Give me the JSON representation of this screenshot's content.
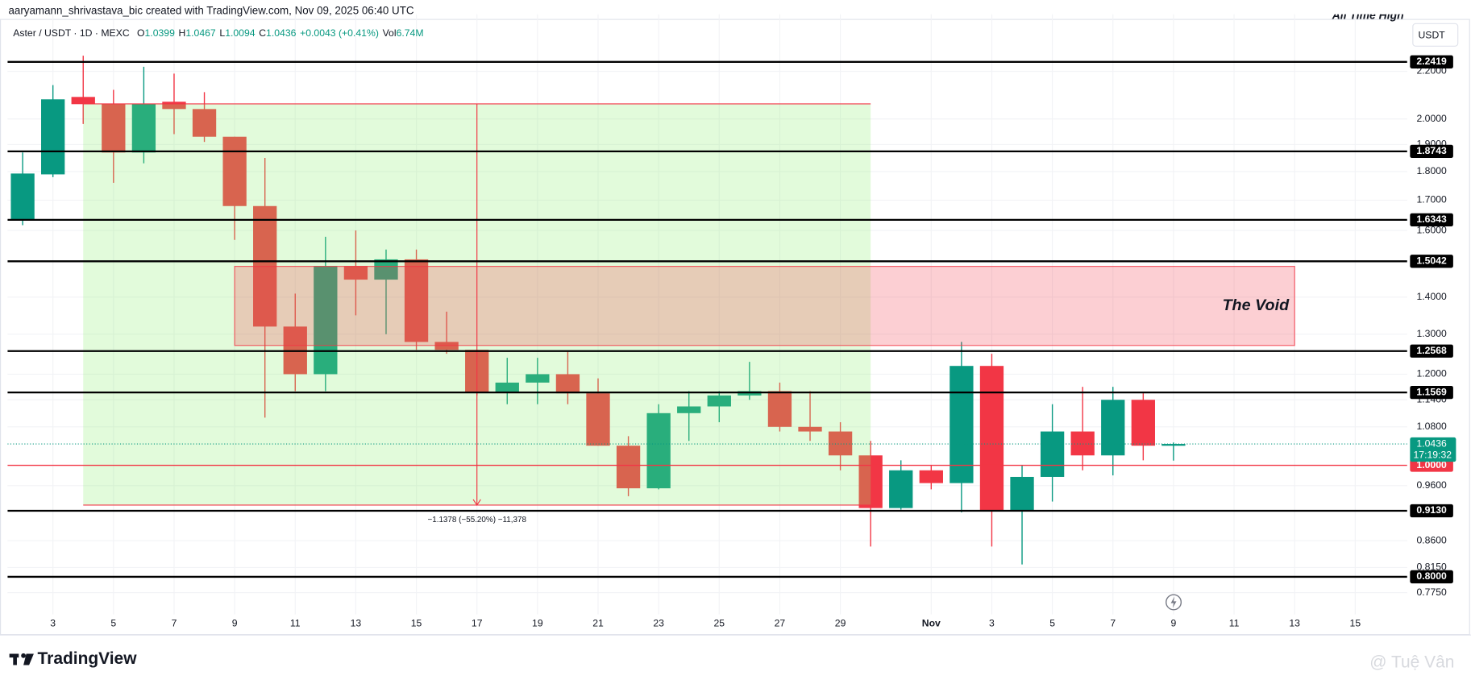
{
  "chart_data": {
    "type": "candlestick",
    "credit": "aaryamann_shrivastava_bic created with TradingView.com, Nov 09, 2025 06:40 UTC",
    "symbol": "Aster / USDT · 1D · MEXC",
    "ohlc_labels": [
      "O",
      "H",
      "L",
      "C"
    ],
    "change": "+0.0043 (+0.41%)",
    "volume_label": "Vol",
    "volume": "6.74M",
    "currency": "USDT",
    "ath_label": "All Time High",
    "logo": "TradingView",
    "watermark": "@ Tuệ Vân",
    "categories": [
      null,
      "3",
      null,
      "5",
      null,
      "7",
      null,
      "9",
      null,
      "11",
      null,
      "13",
      null,
      "15",
      null,
      "17",
      null,
      "19",
      null,
      "21",
      null,
      "23",
      null,
      "25",
      null,
      "27",
      null,
      "29",
      null,
      null,
      "Nov",
      null,
      "3",
      null,
      "5",
      null,
      "7",
      null,
      "9",
      null,
      "11",
      null,
      "13",
      null,
      "15",
      null
    ],
    "open": [
      1.636,
      1.79,
      2.09,
      2.06,
      1.87,
      2.07,
      2.04,
      1.93,
      1.68,
      1.32,
      1.2,
      1.49,
      1.45,
      1.51,
      1.28,
      1.26,
      1.157,
      1.18,
      1.2,
      1.155,
      1.04,
      0.955,
      1.11,
      1.125,
      1.15,
      1.16,
      1.08,
      1.07,
      1.02,
      0.918,
      0.99,
      0.965,
      1.22,
      0.913,
      0.977,
      1.07,
      1.02,
      1.14,
      1.0399,
      null,
      null,
      null,
      null,
      null,
      null,
      null
    ],
    "high": [
      1.87,
      2.14,
      2.27,
      2.12,
      2.22,
      2.19,
      2.11,
      1.93,
      1.85,
      1.41,
      1.58,
      1.6,
      1.54,
      1.54,
      1.36,
      1.26,
      1.24,
      1.24,
      1.255,
      1.19,
      1.06,
      1.13,
      1.16,
      1.16,
      1.23,
      1.18,
      1.16,
      1.09,
      1.05,
      1.01,
      1.0,
      1.28,
      1.25,
      1.0,
      1.13,
      1.17,
      1.17,
      1.155,
      1.0467,
      null,
      null,
      null,
      null,
      null,
      null,
      null
    ],
    "low": [
      1.617,
      1.78,
      1.98,
      1.76,
      1.83,
      1.94,
      1.91,
      1.57,
      1.1,
      1.16,
      1.16,
      1.35,
      1.3,
      1.26,
      1.25,
      1.15,
      1.13,
      1.13,
      1.13,
      1.04,
      0.94,
      0.953,
      1.05,
      1.09,
      1.14,
      1.07,
      1.05,
      0.99,
      0.85,
      0.915,
      0.953,
      0.91,
      0.85,
      0.82,
      0.93,
      0.99,
      0.98,
      1.01,
      1.0094,
      null,
      null,
      null,
      null,
      null,
      null,
      null
    ],
    "close": [
      1.793,
      2.08,
      2.06,
      1.87,
      2.06,
      2.04,
      1.93,
      1.68,
      1.32,
      1.2,
      1.49,
      1.45,
      1.51,
      1.28,
      1.26,
      1.157,
      1.18,
      1.2,
      1.155,
      1.04,
      0.955,
      1.11,
      1.125,
      1.15,
      1.16,
      1.08,
      1.07,
      1.02,
      0.918,
      0.99,
      0.965,
      1.22,
      0.913,
      0.977,
      1.07,
      1.02,
      1.14,
      1.04,
      1.0436,
      null,
      null,
      null,
      null,
      null,
      null,
      null
    ],
    "up_color": "#089981",
    "down_color": "#f23645",
    "log_scale": true,
    "grid": true,
    "ylim": [
      0.742,
      2.466
    ],
    "yticks": [
      {
        "value": 2.2,
        "label": "2.2000"
      },
      {
        "value": 2.0,
        "label": "2.0000"
      },
      {
        "value": 1.9,
        "label": "1.9000"
      },
      {
        "value": 1.8,
        "label": "1.8000"
      },
      {
        "value": 1.7,
        "label": "1.7000"
      },
      {
        "value": 1.6,
        "label": "1.6000"
      },
      {
        "value": 1.4,
        "label": "1.4000"
      },
      {
        "value": 1.3,
        "label": "1.3000"
      },
      {
        "value": 1.2,
        "label": "1.2000"
      },
      {
        "value": 1.14,
        "label": "1.1400"
      },
      {
        "value": 1.08,
        "label": "1.0800"
      },
      {
        "value": 0.96,
        "label": "0.9600"
      },
      {
        "value": 0.86,
        "label": "0.8600"
      },
      {
        "value": 0.815,
        "label": "0.8150"
      },
      {
        "value": 0.775,
        "label": "0.7750"
      }
    ],
    "levels": [
      2.2419,
      1.8743,
      1.6343,
      1.5042,
      1.2568,
      1.1569,
      {
        "value": 0.913,
        "label": "0.9130"
      },
      {
        "value": 0.8,
        "label": "0.8000"
      }
    ],
    "level_color": "#000000",
    "red_level": {
      "value": 1.0,
      "label": "1.0000"
    },
    "red_level_color": "#f23645",
    "last_price": 1.0436,
    "countdown": "17:19:32",
    "zones": [
      {
        "y": [
          0.9234,
          2.0612
        ],
        "color": "rgba(140, 240, 110, 0.25)"
      },
      {
        "name": "The Void",
        "y": [
          1.271,
          1.489
        ],
        "color": "rgba(242, 54, 69, 0.24)"
      }
    ],
    "measure": {
      "from": 2.0612,
      "to": 0.9234,
      "label": "−1.1378 (−55.20%) −11,378",
      "color": "#f23645"
    }
  }
}
